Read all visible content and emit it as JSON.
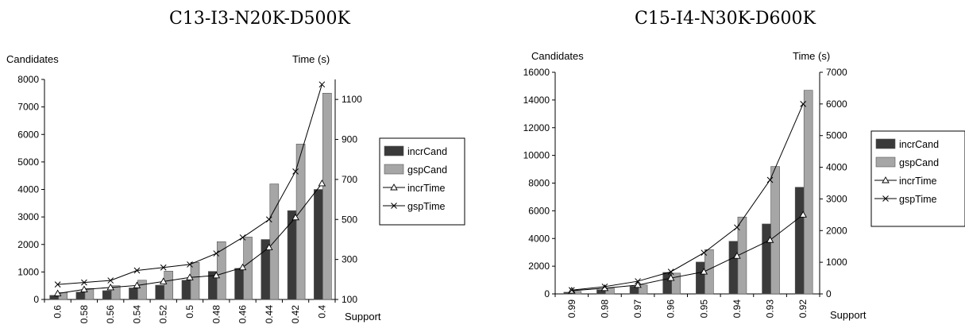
{
  "colors": {
    "incrCand": "#3a3a3a",
    "gspCand": "#a6a6a6",
    "line": "#000000",
    "axis": "#000000"
  },
  "chart_data": [
    {
      "type": "bar",
      "title": "C13-I3-N20K-D500K",
      "ylabel_left": "Candidates",
      "ylabel_right": "Time (s)",
      "xlabel": "Support",
      "categories": [
        "0.6",
        "0.58",
        "0.56",
        "0.54",
        "0.52",
        "0.5",
        "0.48",
        "0.46",
        "0.44",
        "0.42",
        "0.4"
      ],
      "ylim_left": [
        0,
        8000
      ],
      "yticks_left": [
        "0",
        "1000",
        "2000",
        "3000",
        "4000",
        "5000",
        "6000",
        "7000",
        "8000"
      ],
      "ylim_right": [
        100,
        1200
      ],
      "yticks_right": [
        "100",
        "300",
        "500",
        "700",
        "900",
        "1100"
      ],
      "legend_position": "right",
      "series": [
        {
          "name": "incrCand",
          "kind": "bar",
          "axis": "left",
          "values": [
            150,
            270,
            320,
            420,
            520,
            700,
            1020,
            1130,
            2180,
            3230,
            4000
          ]
        },
        {
          "name": "gspCand",
          "kind": "bar",
          "axis": "left",
          "values": [
            250,
            400,
            500,
            700,
            1030,
            1350,
            2100,
            2270,
            4200,
            5650,
            7500
          ]
        },
        {
          "name": "incrTime",
          "kind": "line",
          "marker": "triangle",
          "axis": "right",
          "values": [
            130,
            150,
            160,
            170,
            190,
            210,
            220,
            260,
            360,
            510,
            680
          ]
        },
        {
          "name": "gspTime",
          "kind": "line",
          "marker": "x",
          "axis": "right",
          "values": [
            175,
            185,
            195,
            245,
            260,
            275,
            330,
            410,
            500,
            740,
            1175
          ]
        }
      ]
    },
    {
      "type": "bar",
      "title": "C15-I4-N30K-D600K",
      "ylabel_left": "Candidates",
      "ylabel_right": "Time (s)",
      "xlabel": "Support",
      "categories": [
        "0.99",
        "0.98",
        "0.97",
        "0.96",
        "0.95",
        "0.94",
        "0.93",
        "0.92"
      ],
      "ylim_left": [
        0,
        16000
      ],
      "yticks_left": [
        "0",
        "2000",
        "4000",
        "6000",
        "8000",
        "10000",
        "12000",
        "14000",
        "16000"
      ],
      "ylim_right": [
        0,
        7000
      ],
      "yticks_right": [
        "0",
        "1000",
        "2000",
        "3000",
        "4000",
        "5000",
        "6000",
        "7000"
      ],
      "legend_position": "right",
      "series": [
        {
          "name": "incrCand",
          "kind": "bar",
          "axis": "left",
          "values": [
            120,
            300,
            550,
            1550,
            2300,
            3800,
            5050,
            7700
          ]
        },
        {
          "name": "gspCand",
          "kind": "bar",
          "axis": "left",
          "values": [
            180,
            420,
            650,
            1500,
            3200,
            5550,
            9200,
            14700
          ]
        },
        {
          "name": "incrTime",
          "kind": "line",
          "marker": "triangle",
          "axis": "right",
          "values": [
            100,
            180,
            280,
            500,
            700,
            1200,
            1700,
            2500
          ]
        },
        {
          "name": "gspTime",
          "kind": "line",
          "marker": "x",
          "axis": "right",
          "values": [
            120,
            230,
            400,
            700,
            1300,
            2100,
            3600,
            6000
          ]
        }
      ]
    }
  ]
}
